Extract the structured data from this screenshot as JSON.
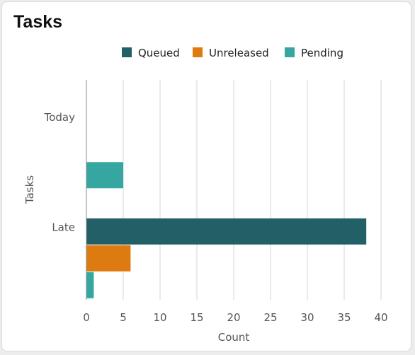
{
  "card": {
    "title": "Tasks"
  },
  "chart_data": {
    "type": "bar",
    "orientation": "horizontal",
    "title": "Tasks",
    "xlabel": "Count",
    "ylabel": "Tasks",
    "categories": [
      "Today",
      "Late"
    ],
    "series": [
      {
        "name": "Queued",
        "color": "#235f66",
        "values": [
          0,
          38
        ]
      },
      {
        "name": "Unreleased",
        "color": "#dd7a10",
        "values": [
          0,
          6
        ]
      },
      {
        "name": "Pending",
        "color": "#35a7a0",
        "values": [
          5,
          1
        ]
      }
    ],
    "xlim": [
      0,
      40
    ],
    "xticks": [
      "0",
      "5",
      "10",
      "15",
      "20",
      "25",
      "30",
      "35",
      "40"
    ],
    "grid": "vertical",
    "legend": "top"
  }
}
